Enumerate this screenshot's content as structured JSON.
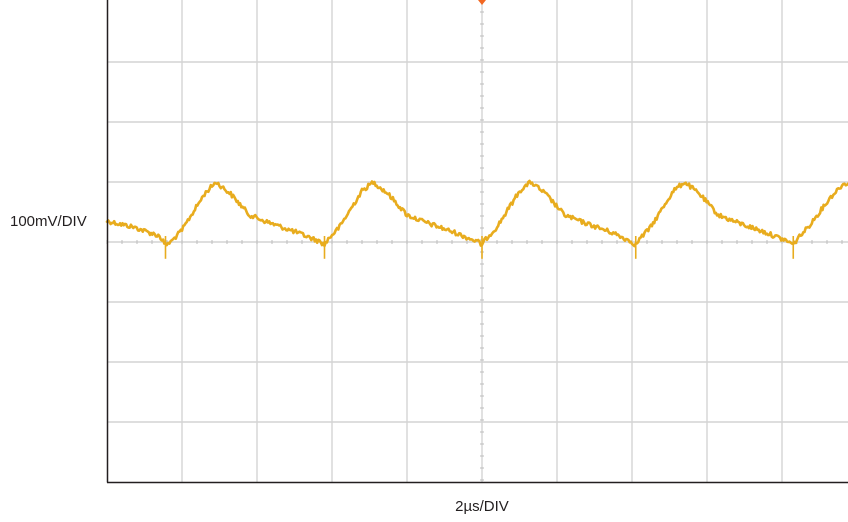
{
  "chart_data": {
    "type": "line",
    "title": "",
    "xlabel": "2µs/DIV",
    "ylabel": "100mV/DIV",
    "xlim": [
      0,
      10
    ],
    "ylim": [
      -4,
      4
    ],
    "x_unit_per_div": "2µs",
    "y_unit_per_div": "100mV",
    "grid": true,
    "legend": "none",
    "trace_color": "#e8ac1e",
    "series": [
      {
        "x": [
          0.0,
          0.35,
          0.7,
          0.78,
          0.85,
          1.0,
          1.3,
          1.45,
          1.65,
          1.9,
          2.1,
          2.55,
          2.85,
          2.9,
          2.95,
          3.1,
          3.4,
          3.55,
          3.75,
          4.0,
          4.2,
          4.65,
          4.95,
          5.0,
          5.05,
          5.2,
          5.5,
          5.65,
          5.85,
          6.1,
          6.3,
          6.75,
          7.0,
          7.05,
          7.1,
          7.25,
          7.55,
          7.7,
          7.9,
          8.15,
          8.35,
          8.8,
          9.1,
          9.15,
          9.2,
          9.35,
          9.65,
          9.8,
          9.9,
          9.99
        ],
        "y": [
          0.35,
          0.25,
          0.1,
          -0.05,
          0.0,
          0.2,
          0.8,
          1.0,
          0.8,
          0.45,
          0.35,
          0.15,
          0.0,
          -0.05,
          0.05,
          0.25,
          0.85,
          1.0,
          0.8,
          0.45,
          0.35,
          0.15,
          0.0,
          -0.05,
          0.05,
          0.25,
          0.85,
          1.0,
          0.8,
          0.45,
          0.35,
          0.15,
          0.0,
          -0.05,
          0.05,
          0.25,
          0.85,
          1.0,
          0.8,
          0.45,
          0.35,
          0.15,
          0.0,
          -0.05,
          0.05,
          0.25,
          0.75,
          0.95,
          1.0,
          0.95
        ]
      }
    ]
  }
}
